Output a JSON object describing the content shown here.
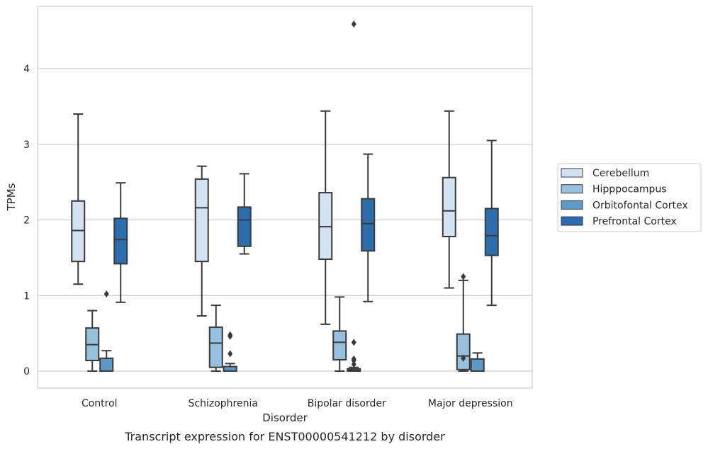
{
  "chart_data": {
    "type": "box",
    "xlabel": "Disorder",
    "ylabel": "TPMs",
    "caption": "Transcript expression for ENST00000541212 by disorder",
    "ylim": [
      -0.22,
      4.82
    ],
    "yticks": [
      0,
      1,
      2,
      3,
      4
    ],
    "grid": "horizontal",
    "legend_position": "right",
    "categories": [
      "Control",
      "Schizophrenia",
      "Bipolar disorder",
      "Major depression"
    ],
    "series": [
      {
        "name": "Cerebellum",
        "color": "#d4e3f2",
        "boxes": [
          {
            "whislo": 1.15,
            "q1": 1.45,
            "med": 1.86,
            "q3": 2.25,
            "whishi": 3.4,
            "fliers": []
          },
          {
            "whislo": 0.73,
            "q1": 1.45,
            "med": 2.16,
            "q3": 2.54,
            "whishi": 2.71,
            "fliers": []
          },
          {
            "whislo": 0.62,
            "q1": 1.48,
            "med": 1.91,
            "q3": 2.36,
            "whishi": 3.44,
            "fliers": []
          },
          {
            "whislo": 1.1,
            "q1": 1.78,
            "med": 2.12,
            "q3": 2.56,
            "whishi": 3.44,
            "fliers": []
          }
        ]
      },
      {
        "name": "Hipppocampus",
        "color": "#97c0dc",
        "boxes": [
          {
            "whislo": 0.0,
            "q1": 0.14,
            "med": 0.35,
            "q3": 0.57,
            "whishi": 0.8,
            "fliers": []
          },
          {
            "whislo": 0.0,
            "q1": 0.05,
            "med": 0.37,
            "q3": 0.58,
            "whishi": 0.87,
            "fliers": []
          },
          {
            "whislo": 0.0,
            "q1": 0.15,
            "med": 0.38,
            "q3": 0.53,
            "whishi": 0.98,
            "fliers": []
          },
          {
            "whislo": 0.0,
            "q1": 0.02,
            "med": 0.2,
            "q3": 0.49,
            "whishi": 1.2,
            "fliers": [
              0.17,
              1.25
            ]
          }
        ]
      },
      {
        "name": "Orbitofontal Cortex",
        "color": "#5a99c8",
        "boxes": [
          {
            "whislo": 0.0,
            "q1": 0.0,
            "med": 0.0,
            "q3": 0.17,
            "whishi": 0.27,
            "fliers": [
              1.02
            ]
          },
          {
            "whislo": 0.0,
            "q1": 0.0,
            "med": 0.0,
            "q3": 0.06,
            "whishi": 0.1,
            "fliers": [
              0.23,
              0.46,
              0.48
            ]
          },
          {
            "whislo": 0.0,
            "q1": 0.0,
            "med": 0.01,
            "q3": 0.03,
            "whishi": 0.05,
            "fliers": [
              0.09,
              0.14,
              0.16,
              0.38,
              4.59
            ]
          },
          {
            "whislo": 0.0,
            "q1": 0.0,
            "med": 0.0,
            "q3": 0.16,
            "whishi": 0.24,
            "fliers": []
          }
        ]
      },
      {
        "name": "Prefrontal Cortex",
        "color": "#2c6daf",
        "boxes": [
          {
            "whislo": 0.91,
            "q1": 1.42,
            "med": 1.74,
            "q3": 2.02,
            "whishi": 2.49,
            "fliers": []
          },
          {
            "whislo": 1.55,
            "q1": 1.65,
            "med": 2.0,
            "q3": 2.17,
            "whishi": 2.61,
            "fliers": []
          },
          {
            "whislo": 0.92,
            "q1": 1.59,
            "med": 1.95,
            "q3": 2.28,
            "whishi": 2.87,
            "fliers": []
          },
          {
            "whislo": 0.87,
            "q1": 1.53,
            "med": 1.79,
            "q3": 2.15,
            "whishi": 3.05,
            "fliers": []
          }
        ]
      }
    ]
  }
}
